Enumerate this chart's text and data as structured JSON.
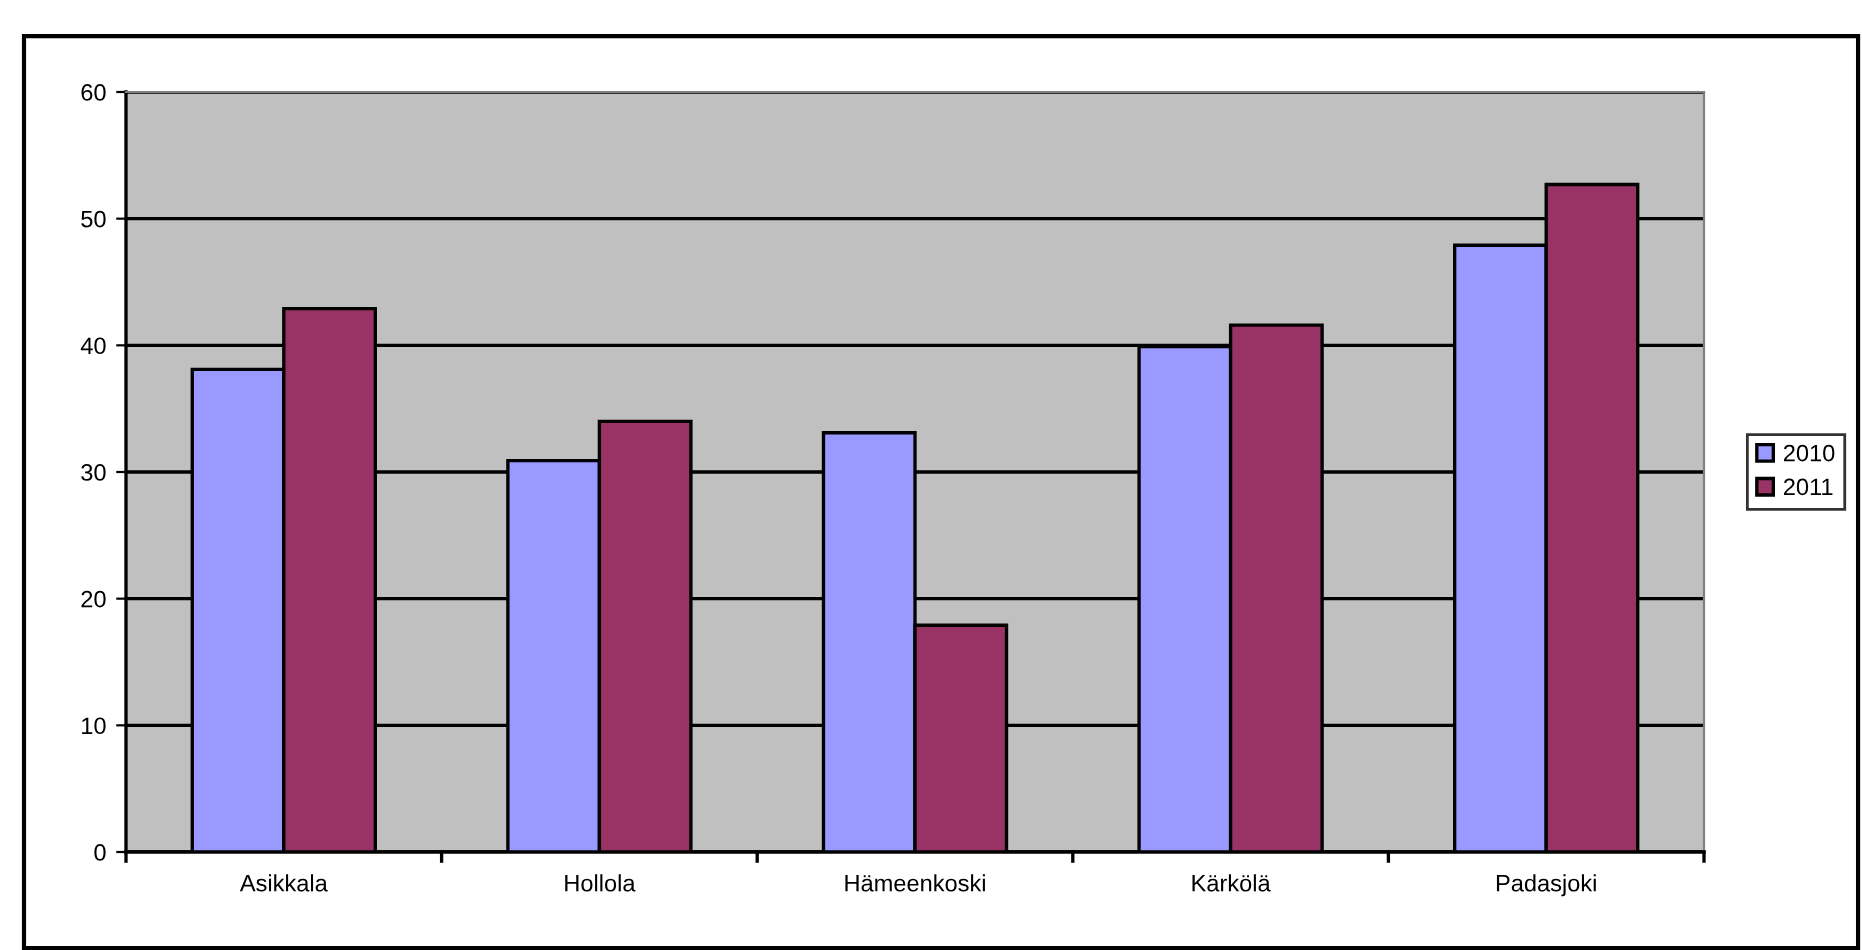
{
  "chart_data": {
    "type": "bar",
    "categories": [
      "Asikkala",
      "Hollola",
      "Hämeenkoski",
      "Kärkölä",
      "Padasjoki"
    ],
    "series": [
      {
        "name": "2010",
        "color": "#9999ff",
        "values": [
          38.1,
          30.9,
          33.1,
          39.9,
          47.9
        ]
      },
      {
        "name": "2011",
        "color": "#993366",
        "values": [
          42.9,
          34.0,
          17.9,
          41.6,
          52.7
        ]
      }
    ],
    "ylim": [
      0,
      60
    ],
    "yticks": [
      0,
      10,
      20,
      30,
      40,
      50,
      60
    ],
    "grid": "y",
    "legend": "right"
  }
}
